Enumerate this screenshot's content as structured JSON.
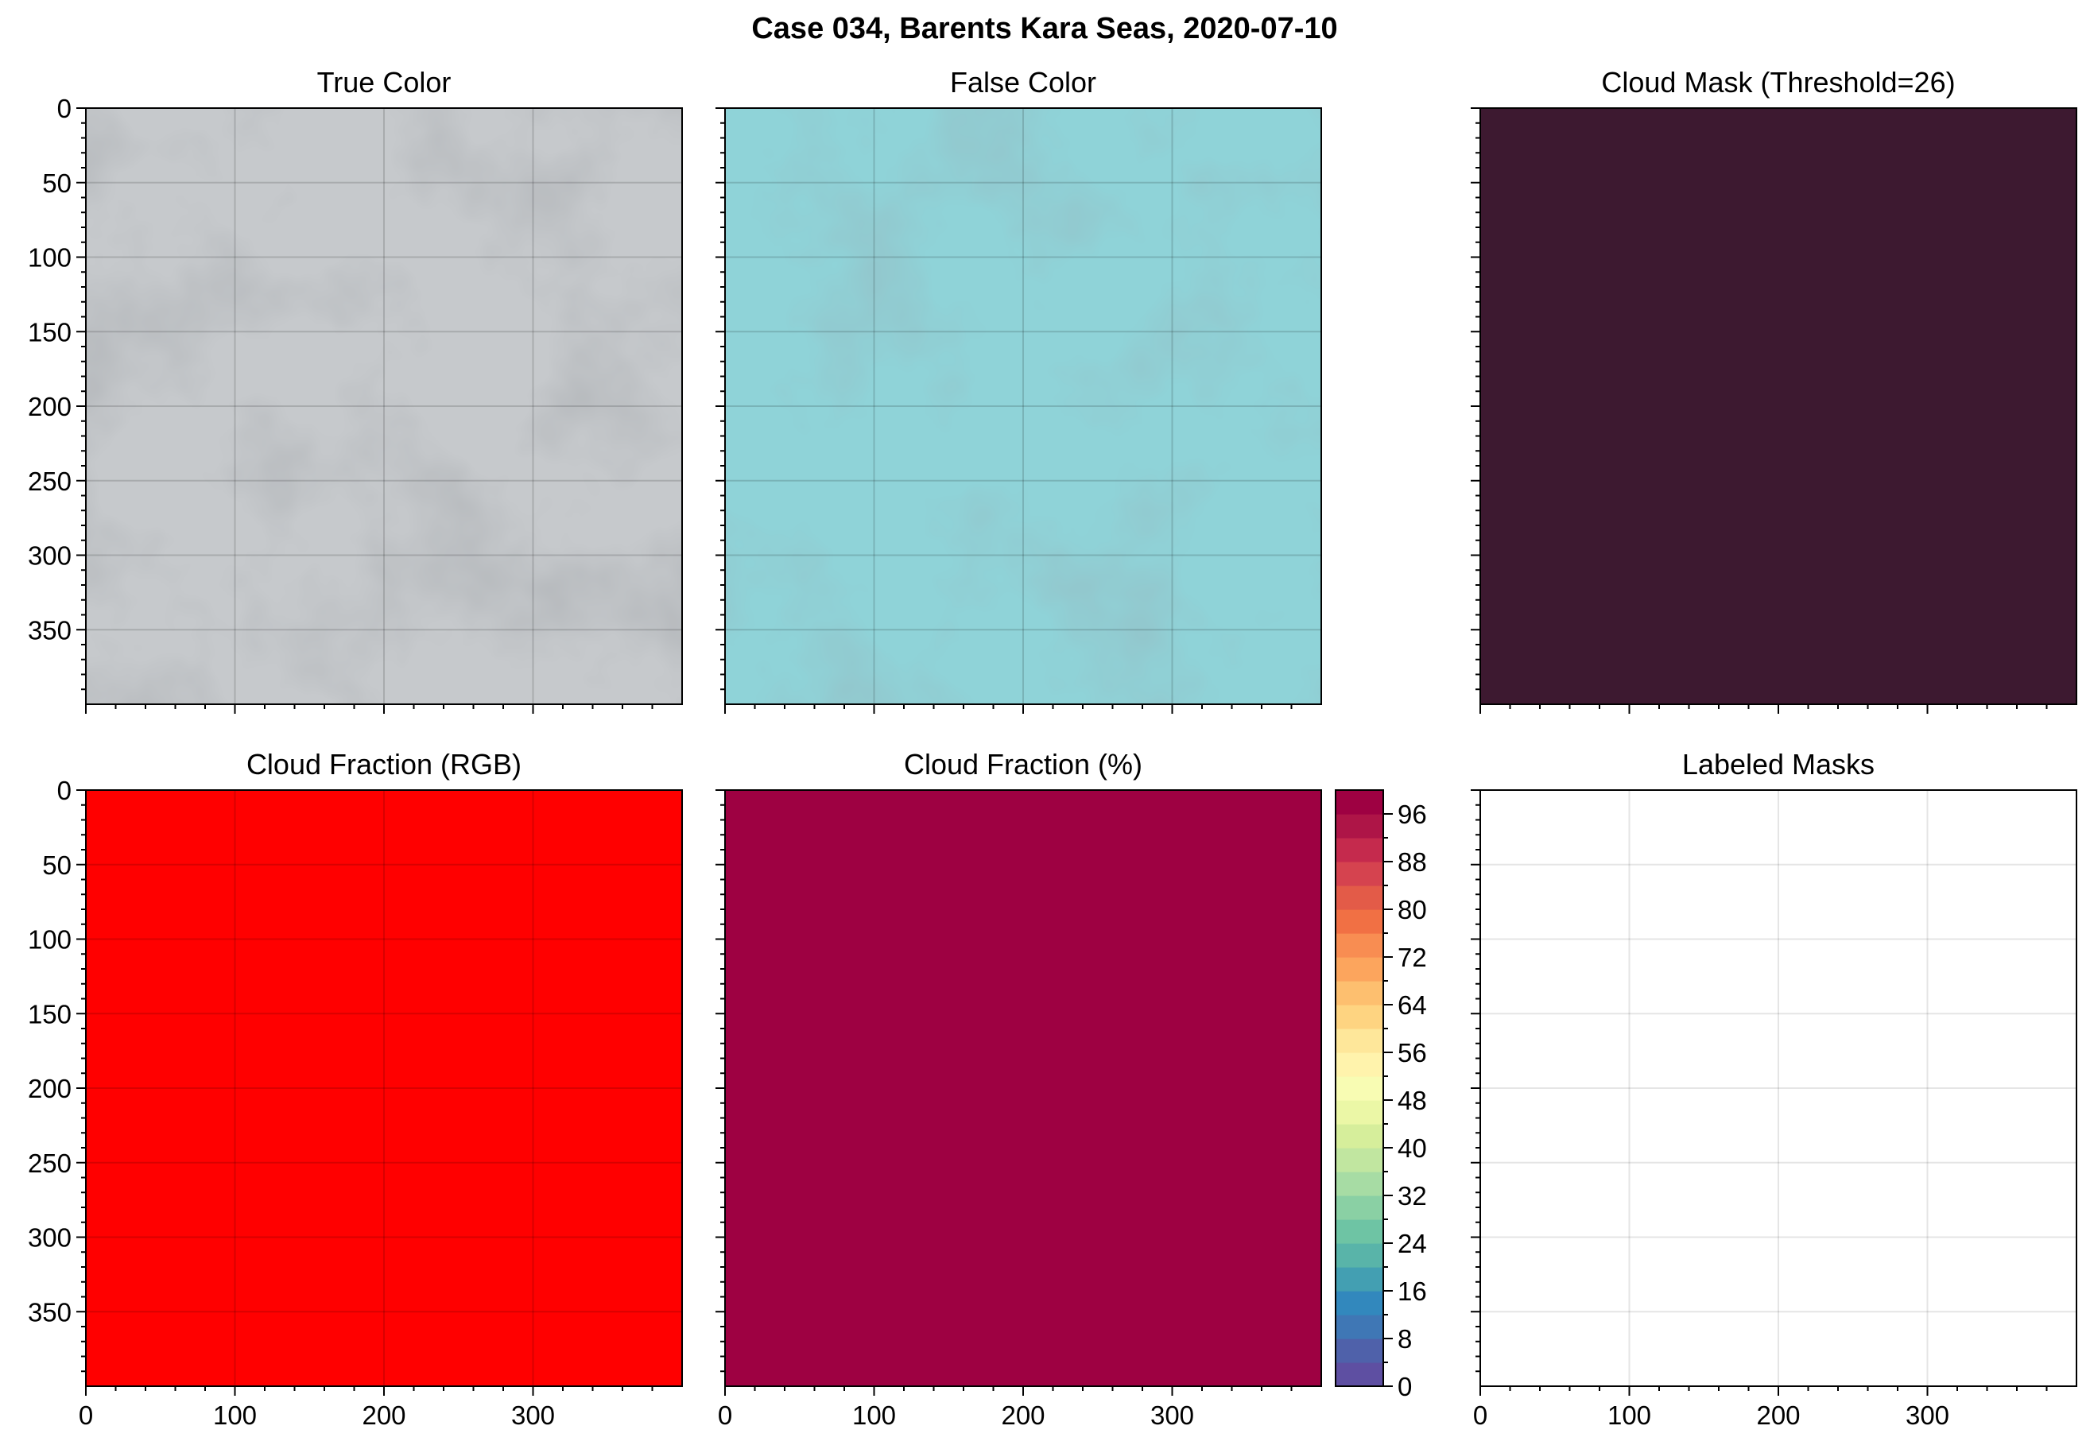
{
  "figure": {
    "title": "Case 034, Barents Kara Seas, 2020-07-10"
  },
  "chart_data": [
    {
      "type": "heatmap",
      "id": "true_color",
      "title": "True Color",
      "image": "grey sea-ice satellite scene",
      "xlim": [
        0,
        400
      ],
      "ylim": [
        400,
        0
      ],
      "y_ticks": [
        0,
        50,
        100,
        150,
        200,
        250,
        300,
        350
      ],
      "x_ticks_labeled": false,
      "y_ticks_labeled": true,
      "grid": true,
      "fill_color": "#c6c9cc"
    },
    {
      "type": "heatmap",
      "id": "false_color",
      "title": "False Color",
      "image": "cyan false-color sea-ice satellite scene",
      "xlim": [
        0,
        400
      ],
      "ylim": [
        400,
        0
      ],
      "x_ticks_labeled": false,
      "y_ticks_labeled": false,
      "grid": true,
      "fill_color": "#8fd3d8"
    },
    {
      "type": "heatmap",
      "id": "cloud_mask",
      "title": "Cloud Mask (Threshold=26)",
      "xlim": [
        0,
        400
      ],
      "ylim": [
        400,
        0
      ],
      "x_ticks_labeled": false,
      "y_ticks_labeled": false,
      "grid": false,
      "fill_color": "#3d1930"
    },
    {
      "type": "heatmap",
      "id": "cloud_fraction_rgb",
      "title": "Cloud Fraction (RGB)",
      "xlim": [
        0,
        400
      ],
      "ylim": [
        400,
        0
      ],
      "x_ticks": [
        0,
        100,
        200,
        300
      ],
      "y_ticks": [
        0,
        50,
        100,
        150,
        200,
        250,
        300,
        350
      ],
      "x_ticks_labeled": true,
      "y_ticks_labeled": true,
      "grid": true,
      "fill_color": "#ff0000"
    },
    {
      "type": "heatmap",
      "id": "cloud_fraction_pct",
      "title": "Cloud Fraction (%)",
      "xlim": [
        0,
        400
      ],
      "ylim": [
        400,
        0
      ],
      "x_ticks": [
        0,
        100,
        200,
        300
      ],
      "x_ticks_labeled": true,
      "y_ticks_labeled": false,
      "grid": false,
      "fill_color": "#9e0142",
      "value": 100,
      "colorbar": {
        "min": 0,
        "max": 100,
        "step": 4,
        "tick_labels": [
          0,
          8,
          16,
          24,
          32,
          40,
          48,
          56,
          64,
          72,
          80,
          88,
          96
        ],
        "colors": [
          "#5e4fa2",
          "#4f61aa",
          "#3f77b5",
          "#3288bd",
          "#439fb2",
          "#59b4a9",
          "#6ec4a4",
          "#8ad0a4",
          "#a7dca4",
          "#c1e6a0",
          "#d6ee9b",
          "#ebf7a6",
          "#f8fcb3",
          "#fff3ac",
          "#fee79a",
          "#fed481",
          "#fdbf6f",
          "#fca55d",
          "#f88d52",
          "#f17044",
          "#e35b48",
          "#d5434f",
          "#c52a4d",
          "#ae1547",
          "#9e0142"
        ]
      }
    },
    {
      "type": "heatmap",
      "id": "labeled_masks",
      "title": "Labeled Masks",
      "xlim": [
        0,
        400
      ],
      "ylim": [
        400,
        0
      ],
      "x_ticks": [
        0,
        100,
        200,
        300
      ],
      "x_ticks_labeled": true,
      "y_ticks_labeled": false,
      "grid": true,
      "fill_color": "#ffffff"
    }
  ]
}
